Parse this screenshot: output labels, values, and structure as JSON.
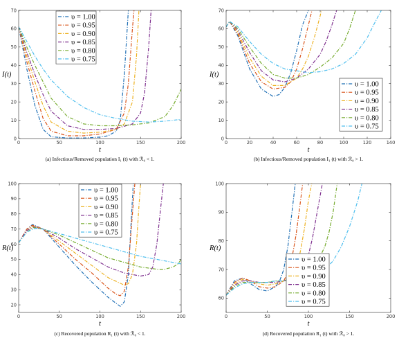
{
  "figure": {
    "legend_template": "v = {v}",
    "greek_upsilon": "υ"
  },
  "chart_data": [
    {
      "id": "a",
      "type": "line",
      "caption": "(a) Infectious/Removed population I₁ (t) with ℛ₀ < 1.",
      "xlabel": "t",
      "ylabel": "I(t)",
      "xlim": [
        0,
        200
      ],
      "ylim": [
        0,
        70
      ],
      "xticks": [
        0,
        50,
        100,
        150,
        200
      ],
      "yticks": [
        0,
        10,
        20,
        30,
        40,
        50,
        60,
        70
      ],
      "grid": false,
      "legend_position": "top-left",
      "series": [
        {
          "name": "1.00",
          "color": "#1f6fb5",
          "x": [
            0,
            10,
            20,
            30,
            40,
            60,
            80,
            100,
            110,
            120,
            125,
            130,
            135
          ],
          "y": [
            61,
            38,
            18,
            5,
            1,
            0.3,
            0.3,
            0.8,
            1.5,
            4,
            10,
            35,
            70
          ]
        },
        {
          "name": "0.95",
          "color": "#d95319",
          "x": [
            0,
            10,
            20,
            30,
            40,
            60,
            80,
            100,
            120,
            130,
            135,
            140,
            142
          ],
          "y": [
            61,
            42,
            26,
            11,
            4,
            1.5,
            1.5,
            2.5,
            5,
            14,
            30,
            60,
            70
          ]
        },
        {
          "name": "0.90",
          "color": "#edb120",
          "x": [
            0,
            10,
            20,
            30,
            40,
            60,
            80,
            100,
            120,
            130,
            140,
            145,
            148
          ],
          "y": [
            61,
            45,
            31,
            18,
            9,
            4,
            3,
            3.5,
            5,
            8,
            20,
            45,
            70
          ]
        },
        {
          "name": "0.85",
          "color": "#7e2f8e",
          "x": [
            0,
            10,
            20,
            30,
            40,
            60,
            80,
            100,
            120,
            140,
            150,
            155,
            160,
            163
          ],
          "y": [
            61,
            47,
            35,
            24,
            15,
            7,
            5,
            5,
            5.5,
            8,
            14,
            25,
            50,
            70
          ]
        },
        {
          "name": "0.80",
          "color": "#77ac30",
          "x": [
            0,
            10,
            20,
            30,
            40,
            60,
            80,
            100,
            120,
            140,
            160,
            180,
            190,
            200
          ],
          "y": [
            61,
            50,
            40,
            31,
            22,
            12,
            8,
            7,
            7,
            7.5,
            8.5,
            12,
            18,
            27
          ]
        },
        {
          "name": "0.75",
          "color": "#4dbeee",
          "x": [
            0,
            10,
            20,
            30,
            40,
            60,
            80,
            100,
            120,
            140,
            160,
            180,
            200
          ],
          "y": [
            61,
            53,
            45,
            38,
            32,
            23,
            17,
            13,
            11,
            9.5,
            9,
            9.5,
            10.5
          ]
        }
      ]
    },
    {
      "id": "b",
      "type": "line",
      "caption": "(b) Infectious/Removed population I₁ (t) with ℛ₀ > 1.",
      "xlabel": "t",
      "ylabel": "I(t)",
      "xlim": [
        0,
        140
      ],
      "ylim": [
        0,
        70
      ],
      "xticks": [
        0,
        20,
        40,
        60,
        80,
        100,
        120,
        140
      ],
      "yticks": [
        0,
        10,
        20,
        30,
        40,
        50,
        60,
        70
      ],
      "grid": false,
      "legend_position": "bottom-right",
      "series": [
        {
          "name": "1.00",
          "color": "#1f6fb5",
          "x": [
            0,
            3,
            10,
            20,
            30,
            40,
            45,
            50,
            55,
            60,
            65,
            70
          ],
          "y": [
            61,
            64,
            56,
            38,
            27,
            23,
            24,
            28,
            36,
            48,
            62,
            70
          ]
        },
        {
          "name": "0.95",
          "color": "#d95319",
          "x": [
            0,
            3,
            10,
            20,
            30,
            40,
            50,
            55,
            60,
            65,
            70,
            73
          ],
          "y": [
            61,
            64,
            57,
            41,
            31,
            27,
            28,
            31,
            38,
            49,
            62,
            70
          ]
        },
        {
          "name": "0.90",
          "color": "#edb120",
          "x": [
            0,
            3,
            10,
            20,
            30,
            40,
            50,
            60,
            65,
            70,
            75,
            80,
            81
          ],
          "y": [
            61,
            64,
            58,
            44,
            34,
            29,
            29,
            33,
            38,
            45,
            55,
            67,
            70
          ]
        },
        {
          "name": "0.85",
          "color": "#7e2f8e",
          "x": [
            0,
            3,
            10,
            20,
            30,
            40,
            50,
            60,
            70,
            80,
            85,
            90,
            94
          ],
          "y": [
            61,
            64,
            59,
            47,
            37,
            32,
            31,
            33,
            38,
            46,
            53,
            62,
            70
          ]
        },
        {
          "name": "0.80",
          "color": "#77ac30",
          "x": [
            0,
            3,
            10,
            20,
            30,
            40,
            50,
            60,
            70,
            80,
            90,
            100,
            105,
            110
          ],
          "y": [
            61,
            64,
            60,
            50,
            41,
            35,
            33,
            33,
            35,
            39,
            44,
            52,
            60,
            70
          ]
        },
        {
          "name": "0.75",
          "color": "#4dbeee",
          "x": [
            0,
            3,
            10,
            20,
            30,
            40,
            50,
            60,
            70,
            80,
            90,
            100,
            110,
            120,
            127,
            132
          ],
          "y": [
            61,
            64,
            61,
            53,
            46,
            41,
            38,
            37,
            36,
            36.5,
            38,
            41,
            46,
            55,
            64,
            70
          ]
        }
      ]
    },
    {
      "id": "c",
      "type": "line",
      "caption": "(c) Recovered population R₁ (t) with ℛ₀ < 1.",
      "xlabel": "t",
      "ylabel": "R(t)",
      "xlim": [
        0,
        200
      ],
      "ylim": [
        15,
        100
      ],
      "xticks": [
        0,
        50,
        100,
        150,
        200
      ],
      "yticks": [
        20,
        30,
        40,
        50,
        60,
        70,
        80,
        90,
        100
      ],
      "grid": false,
      "legend_position": "top-center",
      "series": [
        {
          "name": "1.00",
          "color": "#1f6fb5",
          "x": [
            0,
            10,
            17,
            30,
            50,
            70,
            90,
            110,
            120,
            125,
            130,
            135,
            138,
            141
          ],
          "y": [
            61,
            70,
            73,
            70,
            58,
            46,
            35,
            25,
            21,
            19,
            22,
            40,
            70,
            100
          ]
        },
        {
          "name": "0.95",
          "color": "#d95319",
          "x": [
            0,
            10,
            17,
            30,
            50,
            70,
            90,
            110,
            120,
            125,
            130,
            135,
            140,
            143
          ],
          "y": [
            61,
            70,
            72.5,
            70,
            60,
            50,
            41,
            31,
            27,
            26,
            29,
            45,
            80,
            100
          ]
        },
        {
          "name": "0.90",
          "color": "#edb120",
          "x": [
            0,
            10,
            17,
            30,
            50,
            70,
            90,
            110,
            130,
            135,
            140,
            145,
            148,
            150
          ],
          "y": [
            61,
            69,
            72,
            70,
            62,
            54,
            46,
            38,
            33,
            34,
            40,
            60,
            85,
            100
          ]
        },
        {
          "name": "0.85",
          "color": "#7e2f8e",
          "x": [
            0,
            10,
            18,
            30,
            50,
            70,
            90,
            110,
            130,
            150,
            160,
            165,
            170,
            175,
            178
          ],
          "y": [
            61,
            69,
            71.5,
            70,
            64,
            57,
            51,
            45,
            41,
            39,
            40,
            45,
            60,
            85,
            100
          ]
        },
        {
          "name": "0.80",
          "color": "#77ac30",
          "x": [
            0,
            10,
            18,
            30,
            50,
            70,
            90,
            110,
            130,
            150,
            170,
            180,
            190,
            196,
            200
          ],
          "y": [
            61,
            68,
            71,
            70,
            66,
            61,
            56,
            51,
            48,
            45,
            43.5,
            43.5,
            45,
            47,
            50
          ]
        },
        {
          "name": "0.75",
          "color": "#4dbeee",
          "x": [
            0,
            10,
            20,
            30,
            50,
            70,
            90,
            110,
            130,
            150,
            170,
            190,
            200
          ],
          "y": [
            61,
            68,
            70.5,
            70,
            67,
            64,
            61,
            58,
            55,
            52,
            50,
            48,
            47
          ]
        }
      ]
    },
    {
      "id": "d",
      "type": "line",
      "caption": "(d) Recovered population R₁ (t) with ℛ₀ > 1.",
      "xlabel": "t",
      "ylabel": "R(t)",
      "xlim": [
        0,
        200
      ],
      "ylim": [
        55,
        100
      ],
      "xticks": [
        0,
        50,
        100,
        150,
        200
      ],
      "yticks": [
        60,
        70,
        80,
        90,
        100
      ],
      "grid": false,
      "legend_position": "bottom-center",
      "series": [
        {
          "name": "1.00",
          "color": "#1f6fb5",
          "x": [
            0,
            10,
            20,
            30,
            40,
            50,
            60,
            65,
            70,
            75,
            80,
            84
          ],
          "y": [
            61,
            66,
            67,
            65,
            63,
            62.5,
            64,
            66,
            70,
            78,
            90,
            100
          ]
        },
        {
          "name": "0.95",
          "color": "#d95319",
          "x": [
            0,
            10,
            20,
            30,
            40,
            50,
            60,
            70,
            75,
            80,
            85,
            90,
            93
          ],
          "y": [
            61,
            65.5,
            67,
            66,
            64,
            63.5,
            64,
            66,
            69,
            74,
            82,
            93,
            100
          ]
        },
        {
          "name": "0.90",
          "color": "#edb120",
          "x": [
            0,
            10,
            20,
            30,
            40,
            50,
            60,
            70,
            80,
            85,
            90,
            95,
            100,
            104
          ],
          "y": [
            61,
            65,
            66.5,
            66,
            65,
            64.5,
            65,
            66,
            68,
            71,
            76,
            84,
            94,
            100
          ]
        },
        {
          "name": "0.85",
          "color": "#7e2f8e",
          "x": [
            0,
            10,
            20,
            30,
            40,
            50,
            60,
            70,
            80,
            90,
            95,
            100,
            105,
            110,
            115,
            117
          ],
          "y": [
            61,
            64.5,
            66,
            66,
            65.5,
            65.5,
            65.5,
            66,
            67,
            69,
            71,
            75,
            81,
            89,
            97,
            100
          ]
        },
        {
          "name": "0.80",
          "color": "#77ac30",
          "x": [
            0,
            10,
            20,
            30,
            40,
            50,
            60,
            70,
            80,
            90,
            100,
            110,
            120,
            125,
            130,
            135
          ],
          "y": [
            61,
            64,
            65.5,
            65.5,
            65.5,
            65.5,
            66,
            66,
            66.5,
            67.5,
            69,
            72,
            78,
            83,
            90,
            100
          ]
        },
        {
          "name": "0.75",
          "color": "#4dbeee",
          "x": [
            0,
            10,
            20,
            30,
            40,
            50,
            60,
            70,
            80,
            90,
            100,
            110,
            120,
            130,
            140,
            150,
            160,
            165
          ],
          "y": [
            61,
            63.5,
            65,
            65.5,
            65.5,
            65.5,
            66,
            66,
            66.5,
            66.5,
            67,
            68,
            70,
            73,
            78,
            85,
            94,
            100
          ]
        }
      ]
    }
  ]
}
